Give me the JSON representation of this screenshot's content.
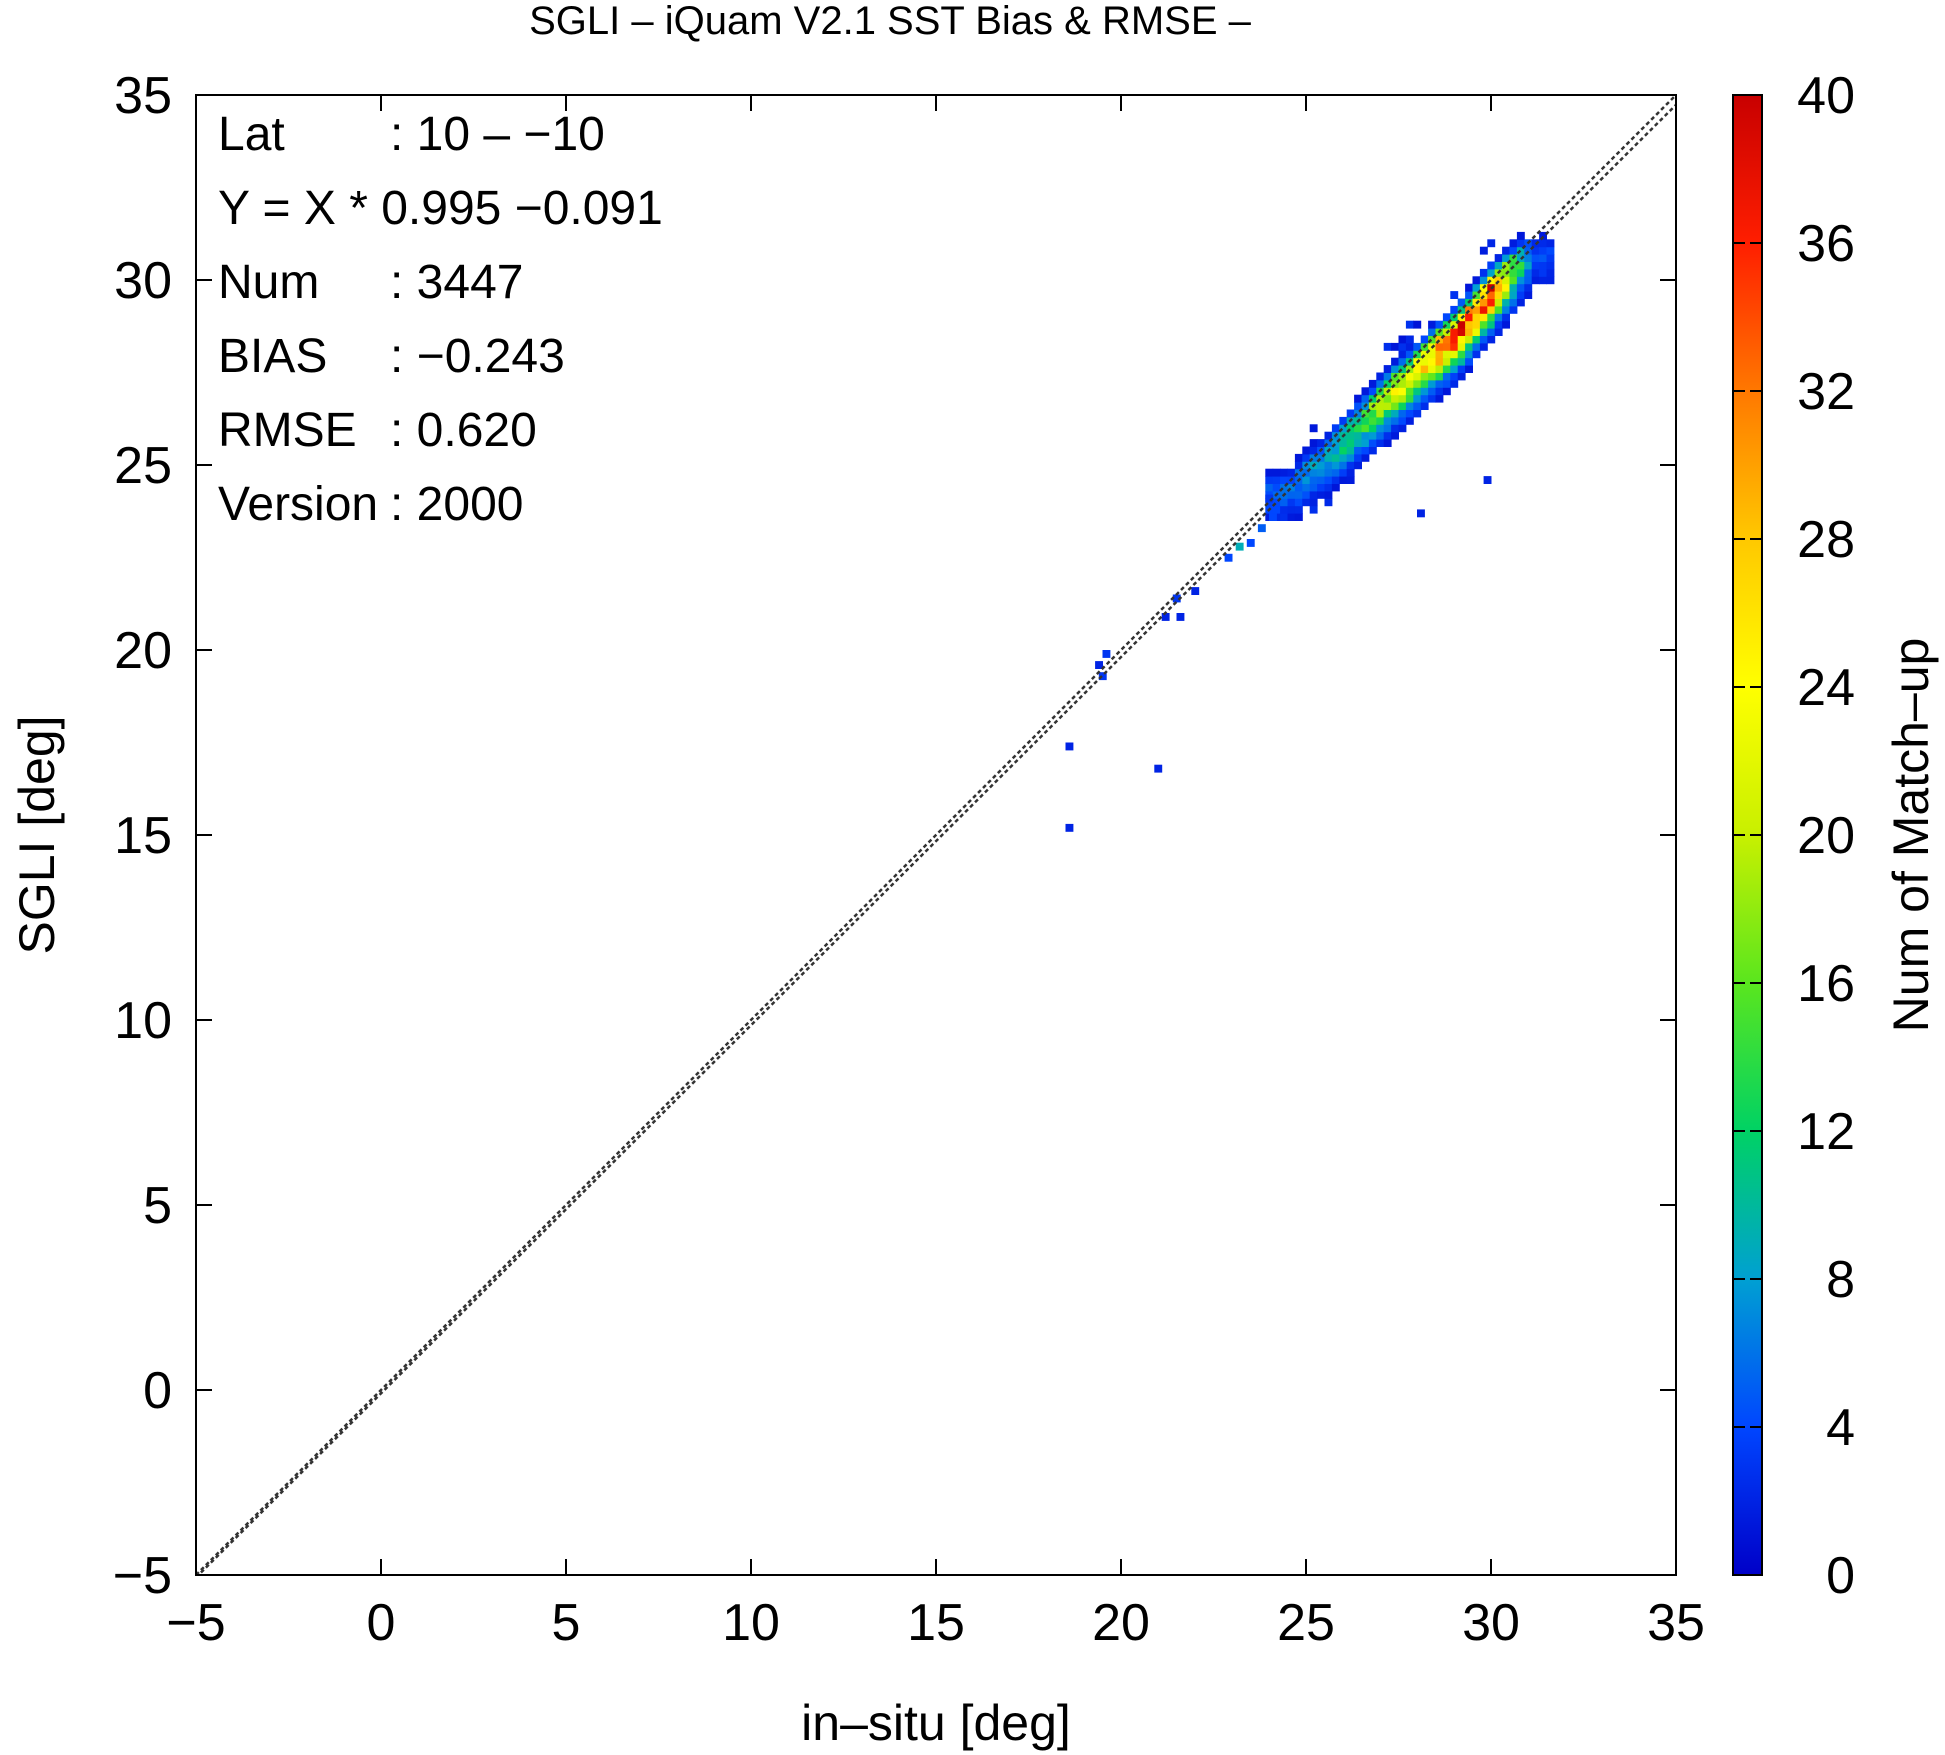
{
  "chart_data": {
    "type": "heatmap",
    "title": "SGLI – iQuam V2.1 SST Bias & RMSE  –",
    "xlabel": "in–situ [deg]",
    "ylabel": "SGLI [deg]",
    "xlim": [
      -5,
      35
    ],
    "ylim": [
      -5,
      35
    ],
    "x_ticks": [
      "−5",
      "0",
      "5",
      "10",
      "15",
      "20",
      "25",
      "30",
      "35"
    ],
    "y_ticks": [
      "−5",
      "0",
      "5",
      "10",
      "15",
      "20",
      "25",
      "30",
      "35"
    ],
    "grid": false,
    "reference_lines": [
      {
        "slope": 1,
        "intercept": 0,
        "style": "dotted"
      },
      {
        "slope": 0.995,
        "intercept": -0.091,
        "style": "dotted"
      }
    ],
    "annotations": [
      {
        "key": "Lat",
        "value": ": 10 – −10"
      },
      {
        "key": "Y = X * 0.995 −0.091",
        "value": ""
      },
      {
        "key": "Num",
        "value": ": 3447"
      },
      {
        "key": "BIAS",
        "value": ": −0.243"
      },
      {
        "key": "RMSE",
        "value": ": 0.620"
      },
      {
        "key": "Version",
        "value": ": 2000"
      }
    ],
    "colorbar": {
      "label": "Num of Match–up",
      "range": [
        0,
        40
      ],
      "ticks": [
        "0",
        "4",
        "8",
        "12",
        "16",
        "20",
        "24",
        "28",
        "32",
        "36",
        "40"
      ],
      "colors": [
        "#0000c8",
        "#0046ff",
        "#00a0d2",
        "#00d264",
        "#5ae61e",
        "#c8f000",
        "#ffff00",
        "#ffc800",
        "#ff7800",
        "#ff1e00",
        "#c80000"
      ]
    },
    "isolated_points": [
      {
        "x": 18.6,
        "y": 17.4,
        "count": 2
      },
      {
        "x": 18.6,
        "y": 15.2,
        "count": 2
      },
      {
        "x": 21.0,
        "y": 16.8,
        "count": 2
      },
      {
        "x": 19.6,
        "y": 19.9,
        "count": 3
      },
      {
        "x": 19.4,
        "y": 19.6,
        "count": 2
      },
      {
        "x": 19.5,
        "y": 19.3,
        "count": 3
      },
      {
        "x": 21.2,
        "y": 20.9,
        "count": 2
      },
      {
        "x": 21.6,
        "y": 20.9,
        "count": 2
      },
      {
        "x": 21.5,
        "y": 21.4,
        "count": 3
      },
      {
        "x": 22.0,
        "y": 21.6,
        "count": 2
      },
      {
        "x": 22.9,
        "y": 22.5,
        "count": 4
      },
      {
        "x": 23.2,
        "y": 22.8,
        "count": 9
      },
      {
        "x": 23.5,
        "y": 22.9,
        "count": 4
      },
      {
        "x": 23.8,
        "y": 23.3,
        "count": 5
      },
      {
        "x": 24.1,
        "y": 23.6,
        "count": 4
      },
      {
        "x": 28.1,
        "y": 23.7,
        "count": 2
      },
      {
        "x": 29.9,
        "y": 24.6,
        "count": 2
      },
      {
        "x": 24.0,
        "y": 24.1,
        "count": 3
      }
    ],
    "cluster": {
      "x_range": [
        24.0,
        31.7
      ],
      "y_range": [
        23.6,
        31.2
      ],
      "points_along_line": [
        {
          "x": 24.5,
          "y": 24.3,
          "peak": 5
        },
        {
          "x": 25.0,
          "y": 24.8,
          "peak": 7
        },
        {
          "x": 25.5,
          "y": 25.2,
          "peak": 8
        },
        {
          "x": 26.0,
          "y": 25.7,
          "peak": 12
        },
        {
          "x": 26.5,
          "y": 26.2,
          "peak": 14
        },
        {
          "x": 27.0,
          "y": 26.7,
          "peak": 18
        },
        {
          "x": 27.5,
          "y": 27.2,
          "peak": 22
        },
        {
          "x": 28.0,
          "y": 27.6,
          "peak": 26
        },
        {
          "x": 28.5,
          "y": 28.1,
          "peak": 30
        },
        {
          "x": 29.0,
          "y": 28.5,
          "peak": 34
        },
        {
          "x": 29.5,
          "y": 29.1,
          "peak": 37
        },
        {
          "x": 30.0,
          "y": 29.7,
          "peak": 34
        },
        {
          "x": 30.4,
          "y": 30.1,
          "peak": 24
        },
        {
          "x": 30.8,
          "y": 30.5,
          "peak": 12
        },
        {
          "x": 31.2,
          "y": 30.7,
          "peak": 4
        }
      ]
    }
  }
}
